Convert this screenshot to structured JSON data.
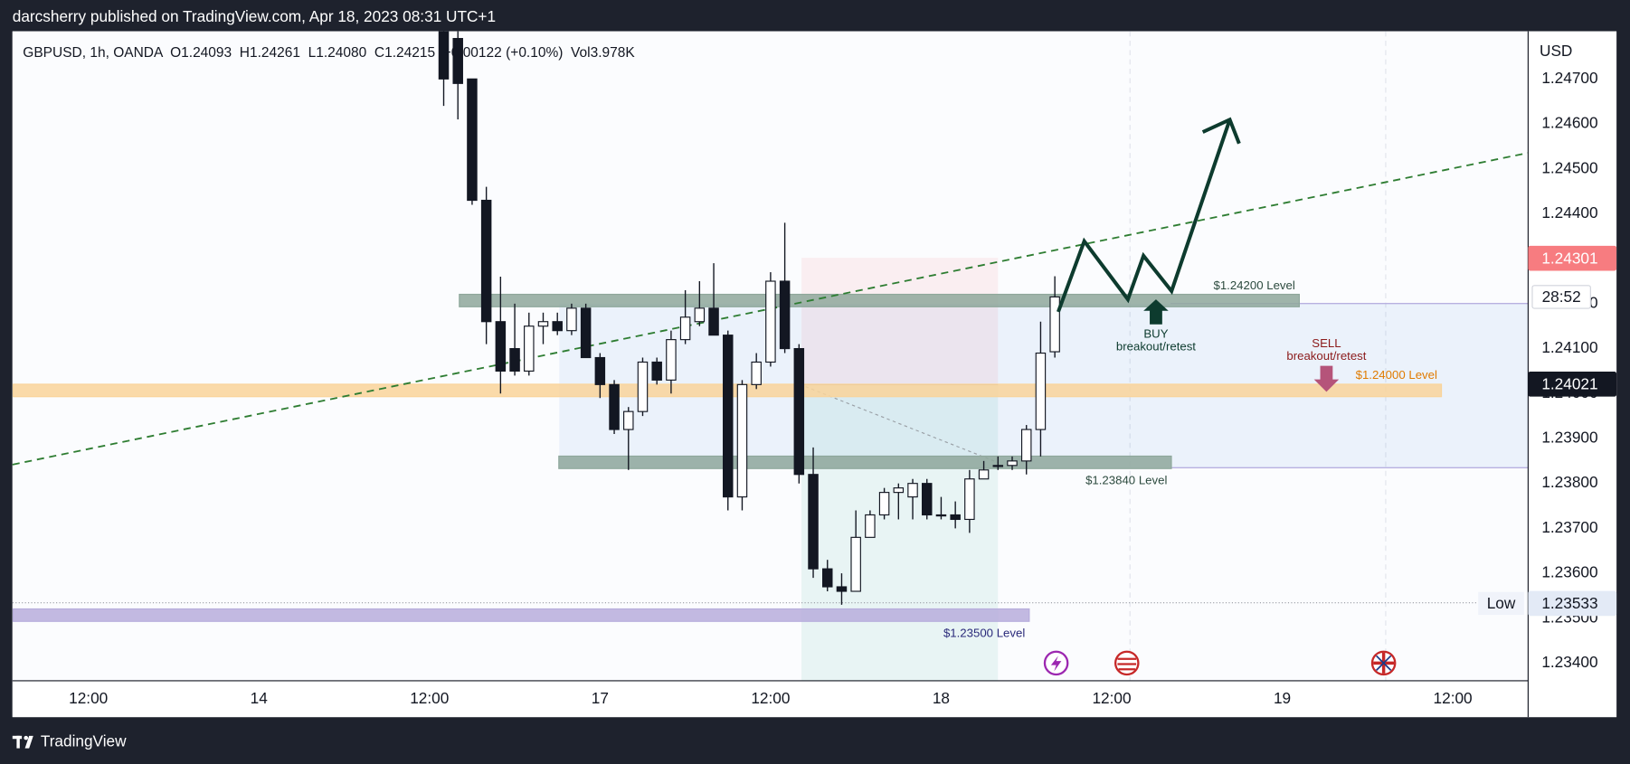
{
  "header": "darcsherry published on TradingView.com, Apr 18, 2023 08:31 UTC+1",
  "footer": "TradingView",
  "chart_data": {
    "type": "candlestick",
    "legend": "GBPUSD, 1h, OANDA  O1.24093  H1.24261  L1.24080  C1.24215  +0.00122 (+0.10%)  Vol3.978K",
    "currency": "USD",
    "x": [
      37,
      38,
      39,
      40,
      41,
      42,
      43,
      44,
      45,
      46,
      47,
      48,
      49,
      50,
      51,
      52,
      53,
      54,
      55,
      56,
      57,
      58,
      59,
      60,
      61,
      62,
      63,
      64,
      65,
      66,
      67,
      68,
      69,
      70,
      71,
      72,
      73,
      74,
      75,
      76,
      77,
      78,
      79,
      80
    ],
    "open": [
      1.2481,
      1.2479,
      1.247,
      1.2443,
      1.2416,
      1.241,
      1.2405,
      1.2415,
      1.2416,
      1.2414,
      1.2419,
      1.2408,
      1.2402,
      1.2392,
      1.2396,
      1.2407,
      1.2403,
      1.2412,
      1.2416,
      1.2419,
      1.2413,
      1.2377,
      1.2402,
      1.2407,
      1.2425,
      1.241,
      1.2382,
      1.2361,
      1.2357,
      1.2356,
      1.2368,
      1.2373,
      1.2378,
      1.2377,
      1.238,
      1.2373,
      1.2373,
      1.2372,
      1.2381,
      1.2384,
      1.2384,
      1.2385,
      1.2392,
      1.24093
    ],
    "high": [
      1.2481,
      1.2481,
      1.247,
      1.2446,
      1.2426,
      1.242,
      1.2418,
      1.2418,
      1.2418,
      1.242,
      1.242,
      1.2409,
      1.2403,
      1.2397,
      1.2408,
      1.2408,
      1.2414,
      1.2423,
      1.2425,
      1.2429,
      1.2414,
      1.2403,
      1.2409,
      1.2427,
      1.2438,
      1.2411,
      1.2388,
      1.2363,
      1.236,
      1.2374,
      1.2374,
      1.2379,
      1.238,
      1.2381,
      1.2381,
      1.2377,
      1.2376,
      1.2383,
      1.2385,
      1.2386,
      1.2386,
      1.2393,
      1.2416,
      1.24261
    ],
    "low": [
      1.2464,
      1.2461,
      1.2442,
      1.2411,
      1.24,
      1.2404,
      1.2404,
      1.2411,
      1.2413,
      1.2413,
      1.2408,
      1.2399,
      1.2391,
      1.2383,
      1.2395,
      1.2402,
      1.24,
      1.2411,
      1.2415,
      1.2413,
      1.2374,
      1.2374,
      1.2401,
      1.2406,
      1.2409,
      1.238,
      1.2359,
      1.2356,
      1.2353,
      1.2356,
      1.2368,
      1.2372,
      1.2372,
      1.2372,
      1.2372,
      1.2372,
      1.237,
      1.2369,
      1.2381,
      1.2383,
      1.2383,
      1.2382,
      1.2386,
      1.2408
    ],
    "close": [
      1.247,
      1.2469,
      1.2443,
      1.2416,
      1.2405,
      1.2405,
      1.2415,
      1.2416,
      1.2414,
      1.2419,
      1.2408,
      1.2402,
      1.2392,
      1.2396,
      1.2407,
      1.2403,
      1.2412,
      1.2417,
      1.2419,
      1.2413,
      1.2377,
      1.2402,
      1.2407,
      1.2425,
      1.241,
      1.2382,
      1.2361,
      1.2357,
      1.2356,
      1.2368,
      1.2373,
      1.2378,
      1.2379,
      1.238,
      1.2373,
      1.2373,
      1.2372,
      1.2381,
      1.2383,
      1.2384,
      1.2385,
      1.2392,
      1.2409,
      1.24215
    ],
    "up_color": "#ffffff",
    "down_color": "#131722",
    "xlim": [
      6.66,
      113.3
    ],
    "ylim": [
      1.23361,
      1.24806
    ],
    "xticks": [
      {
        "value": 12,
        "label": "12:00"
      },
      {
        "value": 24,
        "label": "14"
      },
      {
        "value": 36,
        "label": "12:00"
      },
      {
        "value": 48,
        "label": "17"
      },
      {
        "value": 60,
        "label": "12:00"
      },
      {
        "value": 72,
        "label": "18"
      },
      {
        "value": 84,
        "label": "12:00"
      },
      {
        "value": 96,
        "label": "19"
      },
      {
        "value": 108,
        "label": "12:00"
      }
    ],
    "yticks": [
      {
        "value": 1.234,
        "label": "1.23400"
      },
      {
        "value": 1.235,
        "label": "1.23500"
      },
      {
        "value": 1.236,
        "label": "1.23600"
      },
      {
        "value": 1.237,
        "label": "1.23700"
      },
      {
        "value": 1.238,
        "label": "1.23800"
      },
      {
        "value": 1.239,
        "label": "1.23900"
      },
      {
        "value": 1.24,
        "label": "1.24000"
      },
      {
        "value": 1.241,
        "label": "1.24100"
      },
      {
        "value": 1.242,
        "label": "1.24200"
      },
      {
        "value": 1.243,
        "label": "1.24300"
      },
      {
        "value": 1.244,
        "label": "1.24400"
      },
      {
        "value": 1.245,
        "label": "1.24500"
      },
      {
        "value": 1.246,
        "label": "1.24600"
      },
      {
        "value": 1.247,
        "label": "1.24700"
      }
    ],
    "grid": false,
    "zones": [
      {
        "price": 1.242,
        "label": "$1.24200 Level",
        "x_start": 38.1,
        "x_end": 97.2,
        "color": "#8ea79b",
        "label_color": "#2c4a3e"
      },
      {
        "price": 1.24,
        "label": "$1.24000 Level",
        "x_start": 6.7,
        "x_end": 107.2,
        "color": "#f9d49a",
        "label_color": "#e07b00"
      },
      {
        "price": 1.2384,
        "label": "$1.23840 Level",
        "x_start": 45.1,
        "x_end": 88.2,
        "color": "#8ea79b",
        "label_color": "#2c4a3e"
      },
      {
        "price": 1.235,
        "label": "$1.23500 Level",
        "x_start": 6.7,
        "x_end": 78.2,
        "color": "#b7addc",
        "label_color": "#2a2a7a"
      }
    ],
    "price_labels": [
      {
        "value": 1.24301,
        "color": "#f77c80",
        "text_color": "#ffffff"
      },
      {
        "value": 1.24021,
        "color": "#131722",
        "text_color": "#ffffff"
      },
      {
        "value": 1.23533,
        "color": "#e3eaf6",
        "text_color": "#131722",
        "tag": "Low"
      }
    ],
    "countdown": "28:52",
    "buy": {
      "label": "BUY",
      "sub": "breakout/retest"
    },
    "sell": {
      "label": "SELL",
      "sub": "breakout/retest"
    }
  }
}
